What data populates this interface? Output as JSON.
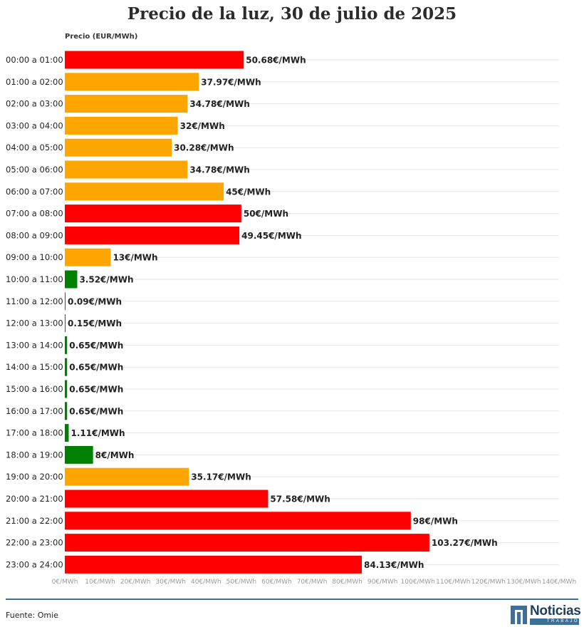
{
  "chart_data": {
    "type": "bar",
    "orientation": "horizontal",
    "title": "Precio de la luz, 30 de julio de 2025",
    "value_header": "Precio (EUR/MWh)",
    "value_suffix": "€/MWh",
    "xlim": [
      0,
      140
    ],
    "x_ticks": [
      0,
      10,
      20,
      30,
      40,
      50,
      60,
      70,
      80,
      90,
      100,
      110,
      120,
      130,
      140
    ],
    "x_tick_labels": [
      "0€/MWh",
      "10€/MWh",
      "20€/MWh",
      "30€/MWh",
      "40€/MWh",
      "50€/MWh",
      "60€/MWh",
      "70€/MWh",
      "80€/MWh",
      "90€/MWh",
      "100€/MWh",
      "110€/MWh",
      "120€/MWh",
      "130€/MWh",
      "140€/MWh"
    ],
    "grid": true,
    "categories": [
      "00:00 a 01:00",
      "01:00 a 02:00",
      "02:00 a 03:00",
      "03:00 a 04:00",
      "04:00 a 05:00",
      "05:00 a 06:00",
      "06:00 a 07:00",
      "07:00 a 08:00",
      "08:00 a 09:00",
      "09:00 a 10:00",
      "10:00 a 11:00",
      "11:00 a 12:00",
      "12:00 a 13:00",
      "13:00 a 14:00",
      "14:00 a 15:00",
      "15:00 a 16:00",
      "16:00 a 17:00",
      "17:00 a 18:00",
      "18:00 a 19:00",
      "19:00 a 20:00",
      "20:00 a 21:00",
      "21:00 a 22:00",
      "22:00 a 23:00",
      "23:00 a 24:00"
    ],
    "values": [
      50.68,
      37.97,
      34.78,
      32,
      30.28,
      34.78,
      45,
      50,
      49.45,
      13,
      3.52,
      0.09,
      0.15,
      0.65,
      0.65,
      0.65,
      0.65,
      1.11,
      8,
      35.17,
      57.58,
      98,
      103.27,
      84.13
    ],
    "value_labels": [
      "50.68€/MWh",
      "37.97€/MWh",
      "34.78€/MWh",
      "32€/MWh",
      "30.28€/MWh",
      "34.78€/MWh",
      "45€/MWh",
      "50€/MWh",
      "49.45€/MWh",
      "13€/MWh",
      "3.52€/MWh",
      "0.09€/MWh",
      "0.15€/MWh",
      "0.65€/MWh",
      "0.65€/MWh",
      "0.65€/MWh",
      "0.65€/MWh",
      "1.11€/MWh",
      "8€/MWh",
      "35.17€/MWh",
      "57.58€/MWh",
      "98€/MWh",
      "103.27€/MWh",
      "84.13€/MWh"
    ],
    "bar_levels": [
      "high",
      "mid",
      "mid",
      "mid",
      "mid",
      "mid",
      "mid",
      "high",
      "high",
      "mid",
      "low",
      "low",
      "low",
      "low",
      "low",
      "low",
      "low",
      "low",
      "low",
      "mid",
      "high",
      "high",
      "high",
      "high"
    ],
    "level_colors": {
      "high": "#ff0000",
      "mid": "#ffa500",
      "low": "#008000"
    }
  },
  "footer": {
    "source": "Fuente: Omie",
    "logo_word": "Noticias",
    "logo_sub": "TRABAJO",
    "logo_icon": "newspaper-n-icon"
  }
}
